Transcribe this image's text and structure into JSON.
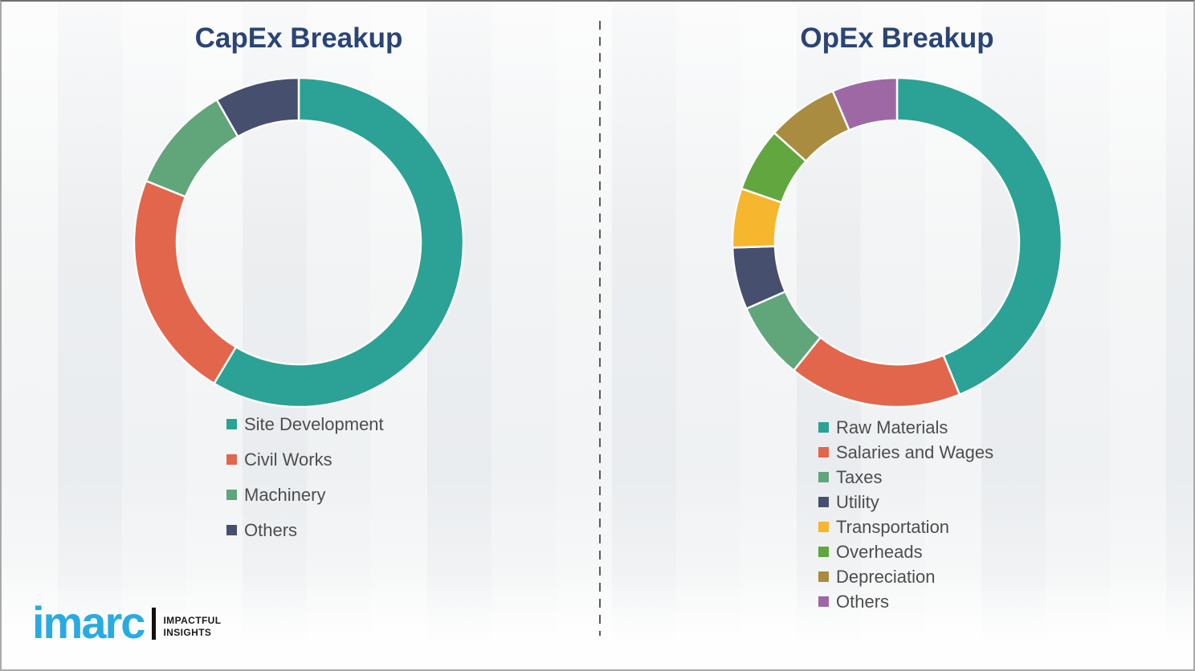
{
  "page": {
    "background_color": "#f1f2f3",
    "divider_color": "#5a5a5a",
    "title_color": "#2B4475",
    "legend_text_color": "#4d4d4d",
    "segment_gap_color": "#fcfcfc"
  },
  "chart_data": [
    {
      "type": "donut",
      "title": "CapEx Breakup",
      "legend_position": "below-left",
      "start_angle_deg": 0,
      "direction": "clockwise",
      "segments": [
        {
          "label": "Site Development",
          "value": 58.6,
          "color": "#2BA295"
        },
        {
          "label": "Civil Works",
          "value": 22.5,
          "color": "#E2664B"
        },
        {
          "label": "Machinery",
          "value": 10.6,
          "color": "#61A57A"
        },
        {
          "label": "Others",
          "value": 8.3,
          "color": "#474F6E"
        }
      ]
    },
    {
      "type": "donut",
      "title": "OpEx Breakup",
      "legend_position": "below-left",
      "start_angle_deg": 0,
      "direction": "clockwise",
      "segments": [
        {
          "label": "Raw Materials",
          "value": 43.8,
          "color": "#2BA295"
        },
        {
          "label": "Salaries and Wages",
          "value": 17.0,
          "color": "#E2664B"
        },
        {
          "label": "Taxes",
          "value": 7.6,
          "color": "#61A57A"
        },
        {
          "label": "Utility",
          "value": 6.1,
          "color": "#474F6E"
        },
        {
          "label": "Transportation",
          "value": 5.8,
          "color": "#F6B62E"
        },
        {
          "label": "Overheads",
          "value": 6.3,
          "color": "#61A63F"
        },
        {
          "label": "Depreciation",
          "value": 7.0,
          "color": "#A98C3F"
        },
        {
          "label": "Others",
          "value": 6.4,
          "color": "#9E68A5"
        }
      ]
    }
  ],
  "logo": {
    "brand": "imarc",
    "tagline_line1": "IMPACTFUL",
    "tagline_line2": "INSIGHTS",
    "brand_color": "#29ABE2"
  }
}
